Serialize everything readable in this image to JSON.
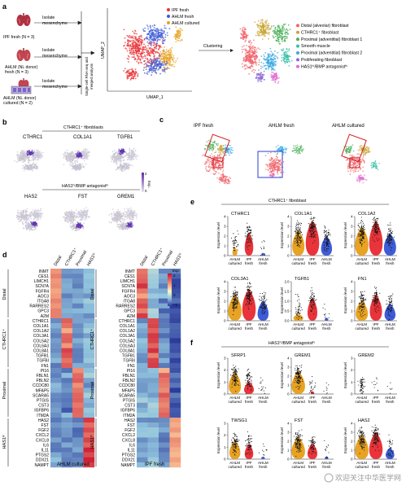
{
  "panel_a": {
    "letter": "a",
    "samples": [
      {
        "line1": "IPF fresh (N = 3)",
        "line2": ""
      },
      {
        "line1": "AHLM (NL donor)",
        "line2": "fresh (N = 3)"
      },
      {
        "line1": "AHLM (NL donor)",
        "line2": "cultured (N = 2)"
      }
    ],
    "isolate_label_1": "Isolate",
    "isolate_label_2": "mesenchyme",
    "vertical_label_1": "Single-cell RNA-seq and",
    "vertical_label_2": "merged analysis",
    "legend_colors": [
      {
        "label": "IPF fresh",
        "color": "#e8343a"
      },
      {
        "label": "AHLM fresh",
        "color": "#3d5cd6"
      },
      {
        "label": "AHLM cultured",
        "color": "#e8a323"
      }
    ],
    "axis_x": "UMAP_1",
    "axis_y": "UMAP_2",
    "clustering_label": "Clustering",
    "clusters": [
      {
        "label": "Distal (alveolar) fibroblast",
        "color": "#f0646b"
      },
      {
        "label": "CTHRC1⁺ fibroblast",
        "color": "#c8a535"
      },
      {
        "label": "Proximal (adventitial) fibroblast 1",
        "color": "#4cb05a"
      },
      {
        "label": "Smooth muscle",
        "color": "#38c0a8"
      },
      {
        "label": "Proximal (adventitial) fibroblast 2",
        "color": "#3aa8e0"
      },
      {
        "label": "Proliferating fibroblast",
        "color": "#8d6bd6"
      },
      {
        "label": "HAS1ʰⁱ/BMP antagonistʰⁱ",
        "color": "#e26ccf"
      }
    ]
  },
  "panel_b": {
    "letter": "b",
    "title_top": "CTHRC1⁺ fibroblasts",
    "genes_top": [
      "CTHRC1",
      "COL1A1",
      "TGFB1"
    ],
    "title_bottom": "HAS1ʰⁱ/BMP antagonistʰⁱ",
    "genes_bottom": [
      "HAS2",
      "FST",
      "GREM1"
    ],
    "scale_hi": "2",
    "scale_lo": "0",
    "scale_label": "Exp."
  },
  "panel_c": {
    "letter": "c",
    "titles": [
      "IPF fresh",
      "AHLM fresh",
      "AHLM cultured"
    ]
  },
  "panel_d": {
    "letter": "d",
    "columns": [
      "Distal",
      "CTHRC1⁺",
      "Proximal",
      "HAS1ʰⁱ"
    ],
    "groups": [
      {
        "label": "Distal",
        "genes": [
          "INMT",
          "CES1",
          "LIMCH1",
          "SCN7A",
          "FGFR4",
          "AOC3",
          "ITGA8",
          "RARRES2",
          "GPC3",
          "A2M"
        ]
      },
      {
        "label": "CTHRC1⁺",
        "genes": [
          "CTHRC1",
          "COL1A1",
          "COL1A2",
          "COL3A1",
          "COL5A2",
          "COL6A3",
          "COL8A1",
          "TGFB1",
          "TGFBI",
          "FN1"
        ]
      },
      {
        "label": "Proximal",
        "genes": [
          "PI16",
          "FBLN1",
          "FBLN2",
          "CCDC80",
          "MFAP5",
          "SCARA5",
          "PTGIS",
          "CST3",
          "IGFBP6",
          "ITM2A"
        ]
      },
      {
        "label": "HAS1ʰⁱ",
        "genes": [
          "HAS2",
          "FST",
          "FGF2",
          "CXCL2",
          "CXCL8",
          "IL6",
          "IL11",
          "PTGS2",
          "DDX21",
          "NAMPT"
        ]
      }
    ],
    "left_xlabel": "AHLM cultured",
    "right_xlabel": "IPF fresh",
    "colorbar_title": "Exp.",
    "colorbar_ticks": [
      "2",
      "1",
      "0",
      "−1"
    ]
  },
  "panel_e": {
    "letter": "e",
    "title": "CTHRC1⁺ fibroblast",
    "ylabel": "Expression level",
    "xlabels": [
      [
        "AHLM",
        "cultured"
      ],
      [
        "IPF",
        "fresh"
      ],
      [
        "AHLM",
        "fresh"
      ]
    ],
    "genes": [
      "CTHRC1",
      "COL1A1",
      "COL1A2",
      "COL3A1",
      "TGFB1",
      "FN1"
    ],
    "yticks": [
      [
        "0",
        "1",
        "2",
        "3",
        "4"
      ],
      [
        "0",
        "1",
        "2",
        "3",
        "4"
      ],
      [
        "0",
        "1",
        "2",
        "3",
        "4"
      ],
      [
        "0",
        "1",
        "2",
        "3",
        "4"
      ],
      [
        "0.0",
        "0.5",
        "1.0",
        "1.5",
        "2.0"
      ],
      [
        "0",
        "1",
        "2",
        "3",
        "4"
      ]
    ]
  },
  "panel_f": {
    "letter": "f",
    "title": "HAS1ʰⁱ/BMP antagonistʰⁱ",
    "ylabel": "Expression level",
    "xlabels": [
      [
        "AHLM",
        "cultured"
      ],
      [
        "IPF",
        "fresh"
      ],
      [
        "AHLM",
        "fresh"
      ]
    ],
    "genes": [
      "SFRP1",
      "GREM1",
      "GREM2",
      "TWSG1",
      "FST",
      "HAS2"
    ],
    "yticks": [
      [
        "0",
        "1",
        "2",
        "3"
      ],
      [
        "0",
        "1",
        "2",
        "3",
        "4"
      ],
      [
        "0",
        "1",
        "2",
        "3"
      ],
      [
        "0",
        "1",
        "2",
        "3"
      ],
      [
        "0",
        "1",
        "2",
        "3",
        "4"
      ],
      [
        "0",
        "1",
        "2",
        "3",
        "4"
      ]
    ]
  },
  "watermark": "欢迎关注中华医学网"
}
